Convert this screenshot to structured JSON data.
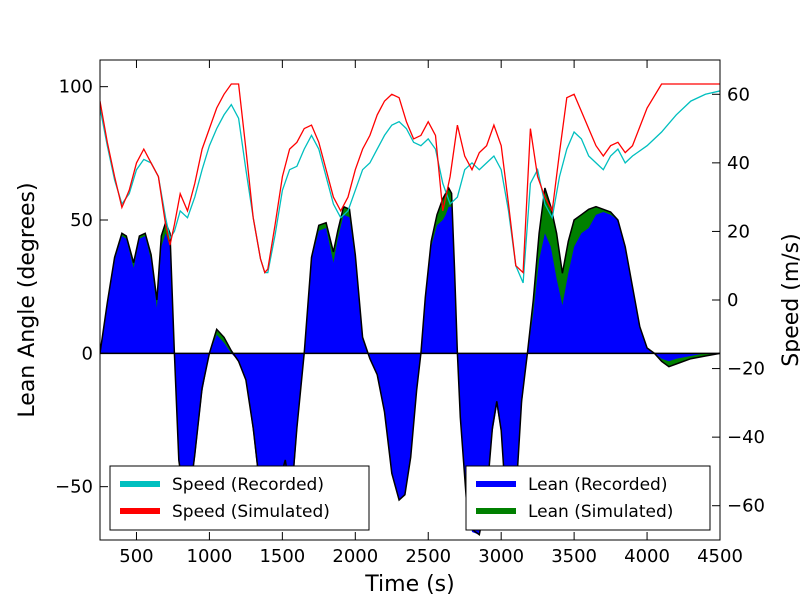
{
  "chart_data": {
    "type": "area",
    "xlabel": "Time (s)",
    "ylabel_left": "Lean Angle (degrees)",
    "ylabel_right": "Speed (m/s)",
    "xlim": [
      250,
      4500
    ],
    "ylim_left": [
      -70,
      110
    ],
    "ylim_right": [
      -70,
      70
    ],
    "xticks": [
      500,
      1000,
      1500,
      2000,
      2500,
      3000,
      3500,
      4000,
      4500
    ],
    "yticks_left": [
      -50,
      0,
      50,
      100
    ],
    "yticks_right": [
      -60,
      -40,
      -20,
      0,
      20,
      40,
      60
    ],
    "lean_series": [
      {
        "name": "Lean (Recorded)",
        "color": "#0000ff",
        "x": [
          250,
          300,
          350,
          400,
          430,
          480,
          520,
          560,
          600,
          640,
          670,
          700,
          730,
          760,
          790,
          820,
          860,
          900,
          950,
          1000,
          1050,
          1100,
          1150,
          1200,
          1250,
          1300,
          1350,
          1400,
          1450,
          1480,
          1520,
          1560,
          1600,
          1650,
          1700,
          1750,
          1800,
          1850,
          1880,
          1920,
          1960,
          2000,
          2050,
          2100,
          2150,
          2200,
          2250,
          2300,
          2340,
          2380,
          2420,
          2450,
          2480,
          2520,
          2560,
          2600,
          2620,
          2640,
          2660,
          2680,
          2700,
          2720,
          2760,
          2800,
          2850,
          2900,
          2940,
          2970,
          3000,
          3030,
          3060,
          3100,
          3140,
          3180,
          3220,
          3260,
          3300,
          3340,
          3380,
          3420,
          3460,
          3500,
          3550,
          3600,
          3650,
          3700,
          3750,
          3800,
          3850,
          3900,
          3950,
          4000,
          4050,
          4100,
          4150,
          4200,
          4300,
          4400,
          4500
        ],
        "values": [
          0,
          18,
          35,
          44,
          43,
          32,
          43,
          44,
          35,
          17,
          40,
          45,
          40,
          0,
          -40,
          -52,
          -55,
          -40,
          -15,
          0,
          7,
          4,
          0,
          -3,
          -10,
          -30,
          -55,
          -65,
          -62,
          -55,
          -48,
          -60,
          -30,
          0,
          35,
          46,
          47,
          34,
          43,
          52,
          51,
          35,
          5,
          -2,
          -8,
          -22,
          -45,
          -55,
          -53,
          -40,
          -15,
          0,
          20,
          40,
          48,
          50,
          52,
          55,
          55,
          30,
          0,
          -25,
          -55,
          -67,
          -68,
          -55,
          -30,
          -20,
          -30,
          -55,
          -65,
          -55,
          -20,
          0,
          15,
          35,
          45,
          40,
          28,
          18,
          30,
          40,
          45,
          47,
          52,
          53,
          52,
          50,
          40,
          25,
          10,
          2,
          0,
          -2,
          -3,
          -2,
          -1,
          0,
          0
        ]
      },
      {
        "name": "Lean (Simulated)",
        "color": "#008000",
        "x": [
          250,
          300,
          350,
          400,
          430,
          480,
          520,
          560,
          600,
          640,
          670,
          700,
          730,
          760,
          790,
          820,
          860,
          900,
          950,
          1000,
          1050,
          1100,
          1150,
          1200,
          1250,
          1300,
          1350,
          1400,
          1450,
          1480,
          1520,
          1560,
          1600,
          1650,
          1700,
          1750,
          1800,
          1850,
          1880,
          1920,
          1960,
          2000,
          2050,
          2100,
          2150,
          2200,
          2250,
          2300,
          2340,
          2380,
          2420,
          2450,
          2480,
          2520,
          2560,
          2600,
          2620,
          2640,
          2660,
          2680,
          2700,
          2720,
          2760,
          2800,
          2850,
          2900,
          2940,
          2970,
          3000,
          3030,
          3060,
          3100,
          3140,
          3180,
          3220,
          3260,
          3300,
          3340,
          3380,
          3420,
          3460,
          3500,
          3550,
          3600,
          3650,
          3700,
          3750,
          3800,
          3850,
          3900,
          3950,
          4000,
          4050,
          4100,
          4150,
          4200,
          4300,
          4400,
          4500
        ],
        "values": [
          0,
          19,
          36,
          45,
          44,
          34,
          44,
          45,
          37,
          20,
          44,
          49,
          45,
          0,
          -40,
          -52,
          -55,
          -38,
          -13,
          0,
          9,
          6,
          1,
          -3,
          -10,
          -28,
          -52,
          -62,
          -58,
          -48,
          -40,
          -55,
          -28,
          0,
          36,
          48,
          49,
          38,
          46,
          55,
          54,
          37,
          6,
          -2,
          -8,
          -22,
          -45,
          -55,
          -53,
          -39,
          -14,
          0,
          21,
          42,
          52,
          58,
          60,
          62,
          60,
          32,
          0,
          -24,
          -54,
          -66,
          -68,
          -54,
          -28,
          -18,
          -29,
          -54,
          -64,
          -54,
          -18,
          0,
          20,
          45,
          62,
          55,
          45,
          30,
          42,
          50,
          52,
          54,
          55,
          54,
          53,
          50,
          40,
          25,
          10,
          2,
          0,
          -3,
          -5,
          -4,
          -2,
          -1,
          0
        ]
      }
    ],
    "speed_series": [
      {
        "name": "Speed (Recorded)",
        "color": "#00bfbf",
        "x": [
          250,
          300,
          350,
          400,
          450,
          500,
          550,
          600,
          650,
          700,
          730,
          760,
          800,
          850,
          900,
          950,
          1000,
          1050,
          1100,
          1150,
          1200,
          1250,
          1300,
          1350,
          1380,
          1400,
          1450,
          1500,
          1550,
          1600,
          1650,
          1700,
          1750,
          1800,
          1850,
          1900,
          1950,
          2000,
          2050,
          2100,
          2150,
          2200,
          2250,
          2300,
          2350,
          2400,
          2450,
          2500,
          2550,
          2600,
          2650,
          2700,
          2750,
          2800,
          2850,
          2900,
          2950,
          3000,
          3050,
          3100,
          3150,
          3200,
          3250,
          3300,
          3350,
          3400,
          3450,
          3500,
          3550,
          3600,
          3650,
          3700,
          3750,
          3800,
          3850,
          3900,
          4000,
          4100,
          4200,
          4300,
          4400,
          4500
        ],
        "values": [
          56,
          45,
          35,
          28,
          31,
          38,
          41,
          40,
          36,
          24,
          18,
          20,
          26,
          24,
          30,
          38,
          45,
          50,
          54,
          57,
          53,
          38,
          24,
          12,
          8,
          8,
          19,
          32,
          38,
          39,
          44,
          48,
          44,
          36,
          28,
          24,
          26,
          32,
          38,
          40,
          44,
          48,
          51,
          52,
          50,
          46,
          45,
          47,
          44,
          34,
          28,
          30,
          38,
          40,
          38,
          40,
          42,
          38,
          26,
          10,
          5,
          34,
          38,
          28,
          24,
          36,
          44,
          49,
          47,
          42,
          40,
          38,
          42,
          44,
          40,
          42,
          45,
          49,
          54,
          58,
          60,
          61
        ]
      },
      {
        "name": "Speed (Simulated)",
        "color": "#ff0000",
        "x": [
          250,
          300,
          350,
          400,
          450,
          500,
          550,
          600,
          650,
          700,
          730,
          760,
          800,
          850,
          900,
          950,
          1000,
          1050,
          1100,
          1150,
          1200,
          1250,
          1300,
          1350,
          1380,
          1400,
          1450,
          1500,
          1550,
          1600,
          1650,
          1700,
          1750,
          1800,
          1850,
          1900,
          1950,
          2000,
          2050,
          2100,
          2150,
          2200,
          2250,
          2300,
          2350,
          2400,
          2450,
          2500,
          2550,
          2600,
          2650,
          2700,
          2750,
          2800,
          2850,
          2900,
          2950,
          3000,
          3050,
          3100,
          3150,
          3200,
          3250,
          3300,
          3350,
          3400,
          3450,
          3500,
          3550,
          3600,
          3650,
          3700,
          3750,
          3800,
          3850,
          3900,
          4000,
          4100,
          4200,
          4300,
          4400,
          4500
        ],
        "values": [
          58,
          46,
          36,
          27,
          32,
          40,
          44,
          40,
          36,
          22,
          16,
          22,
          31,
          26,
          34,
          44,
          50,
          56,
          60,
          63,
          63,
          44,
          24,
          12,
          8,
          9,
          22,
          36,
          44,
          46,
          50,
          51,
          46,
          38,
          30,
          26,
          30,
          38,
          44,
          48,
          54,
          58,
          60,
          59,
          52,
          47,
          48,
          52,
          48,
          26,
          36,
          51,
          42,
          38,
          43,
          45,
          51,
          45,
          28,
          10,
          8,
          50,
          36,
          30,
          26,
          43,
          59,
          60,
          55,
          50,
          45,
          42,
          45,
          46,
          43,
          45,
          56,
          63,
          63,
          63,
          63,
          63
        ]
      }
    ],
    "legend_left": {
      "position": "lower-left",
      "entries": [
        "Speed (Recorded)",
        "Speed (Simulated)"
      ]
    },
    "legend_right": {
      "position": "lower-right",
      "entries": [
        "Lean (Recorded)",
        "Lean (Simulated)"
      ]
    },
    "zero_line": 0
  }
}
